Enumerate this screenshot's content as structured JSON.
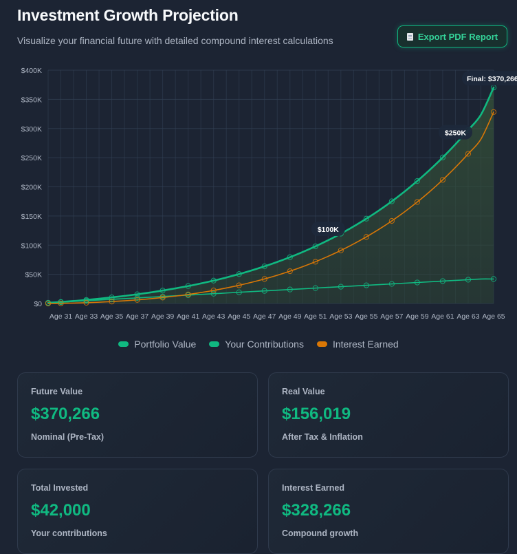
{
  "header": {
    "title": "Investment Growth Projection",
    "subtitle": "Visualize your financial future with detailed compound interest calculations",
    "export_label": "Export PDF Report",
    "export_icon": "document-icon"
  },
  "colors": {
    "portfolio": "#10b981",
    "contributions": "#10b981",
    "interest": "#d97706",
    "background": "#1c2433"
  },
  "chart_data": {
    "type": "line",
    "x": [
      30,
      31,
      32,
      33,
      34,
      35,
      36,
      37,
      38,
      39,
      40,
      41,
      42,
      43,
      44,
      45,
      46,
      47,
      48,
      49,
      50,
      51,
      52,
      53,
      54,
      55,
      56,
      57,
      58,
      59,
      60,
      61,
      62,
      63,
      64,
      65
    ],
    "x_tick_labels": [
      "Age 31",
      "Age 33",
      "Age 35",
      "Age 37",
      "Age 39",
      "Age 41",
      "Age 43",
      "Age 45",
      "Age 47",
      "Age 49",
      "Age 51",
      "Age 53",
      "Age 55",
      "Age 57",
      "Age 59",
      "Age 61",
      "Age 63",
      "Age 65"
    ],
    "y_tick_labels": [
      "$0",
      "$50K",
      "$100K",
      "$150K",
      "$200K",
      "$250K",
      "$300K",
      "$350K",
      "$400K"
    ],
    "ylim": [
      0,
      400000
    ],
    "grid": true,
    "legend_position": "bottom",
    "series": [
      {
        "name": "Portfolio Value",
        "values": [
          1200,
          2600,
          4300,
          6100,
          8200,
          10500,
          13000,
          15800,
          18800,
          22200,
          25900,
          29900,
          34400,
          39200,
          44600,
          50400,
          56800,
          63700,
          71200,
          79400,
          88300,
          98000,
          108500,
          119800,
          132100,
          145400,
          159700,
          175200,
          191900,
          210000,
          229400,
          250400,
          273000,
          297400,
          323600,
          370266
        ]
      },
      {
        "name": "Your Contributions",
        "values": [
          1200,
          2400,
          3600,
          4800,
          6000,
          7200,
          8400,
          9600,
          10800,
          12000,
          13200,
          14400,
          15600,
          16800,
          18000,
          19200,
          20400,
          21600,
          22800,
          24000,
          25200,
          26400,
          27600,
          28800,
          30000,
          31200,
          32400,
          33600,
          34800,
          36000,
          37200,
          38400,
          39600,
          40800,
          42000,
          42000
        ]
      },
      {
        "name": "Interest Earned",
        "values": [
          0,
          200,
          700,
          1300,
          2200,
          3300,
          4600,
          6200,
          8000,
          10200,
          12700,
          15500,
          18800,
          22400,
          26600,
          31200,
          36400,
          42100,
          48400,
          55400,
          63100,
          71600,
          80900,
          91000,
          102100,
          114200,
          127300,
          141600,
          157100,
          174000,
          192200,
          212000,
          233400,
          256600,
          281600,
          328266
        ]
      }
    ],
    "annotations": [
      "$100K",
      "$250K",
      "Final: $370,266"
    ]
  },
  "cards": [
    {
      "label": "Future Value",
      "value": "$370,266",
      "sub": "Nominal (Pre-Tax)"
    },
    {
      "label": "Real Value",
      "value": "$156,019",
      "sub": "After Tax & Inflation"
    },
    {
      "label": "Total Invested",
      "value": "$42,000",
      "sub": "Your contributions"
    },
    {
      "label": "Interest Earned",
      "value": "$328,266",
      "sub": "Compound growth"
    }
  ]
}
